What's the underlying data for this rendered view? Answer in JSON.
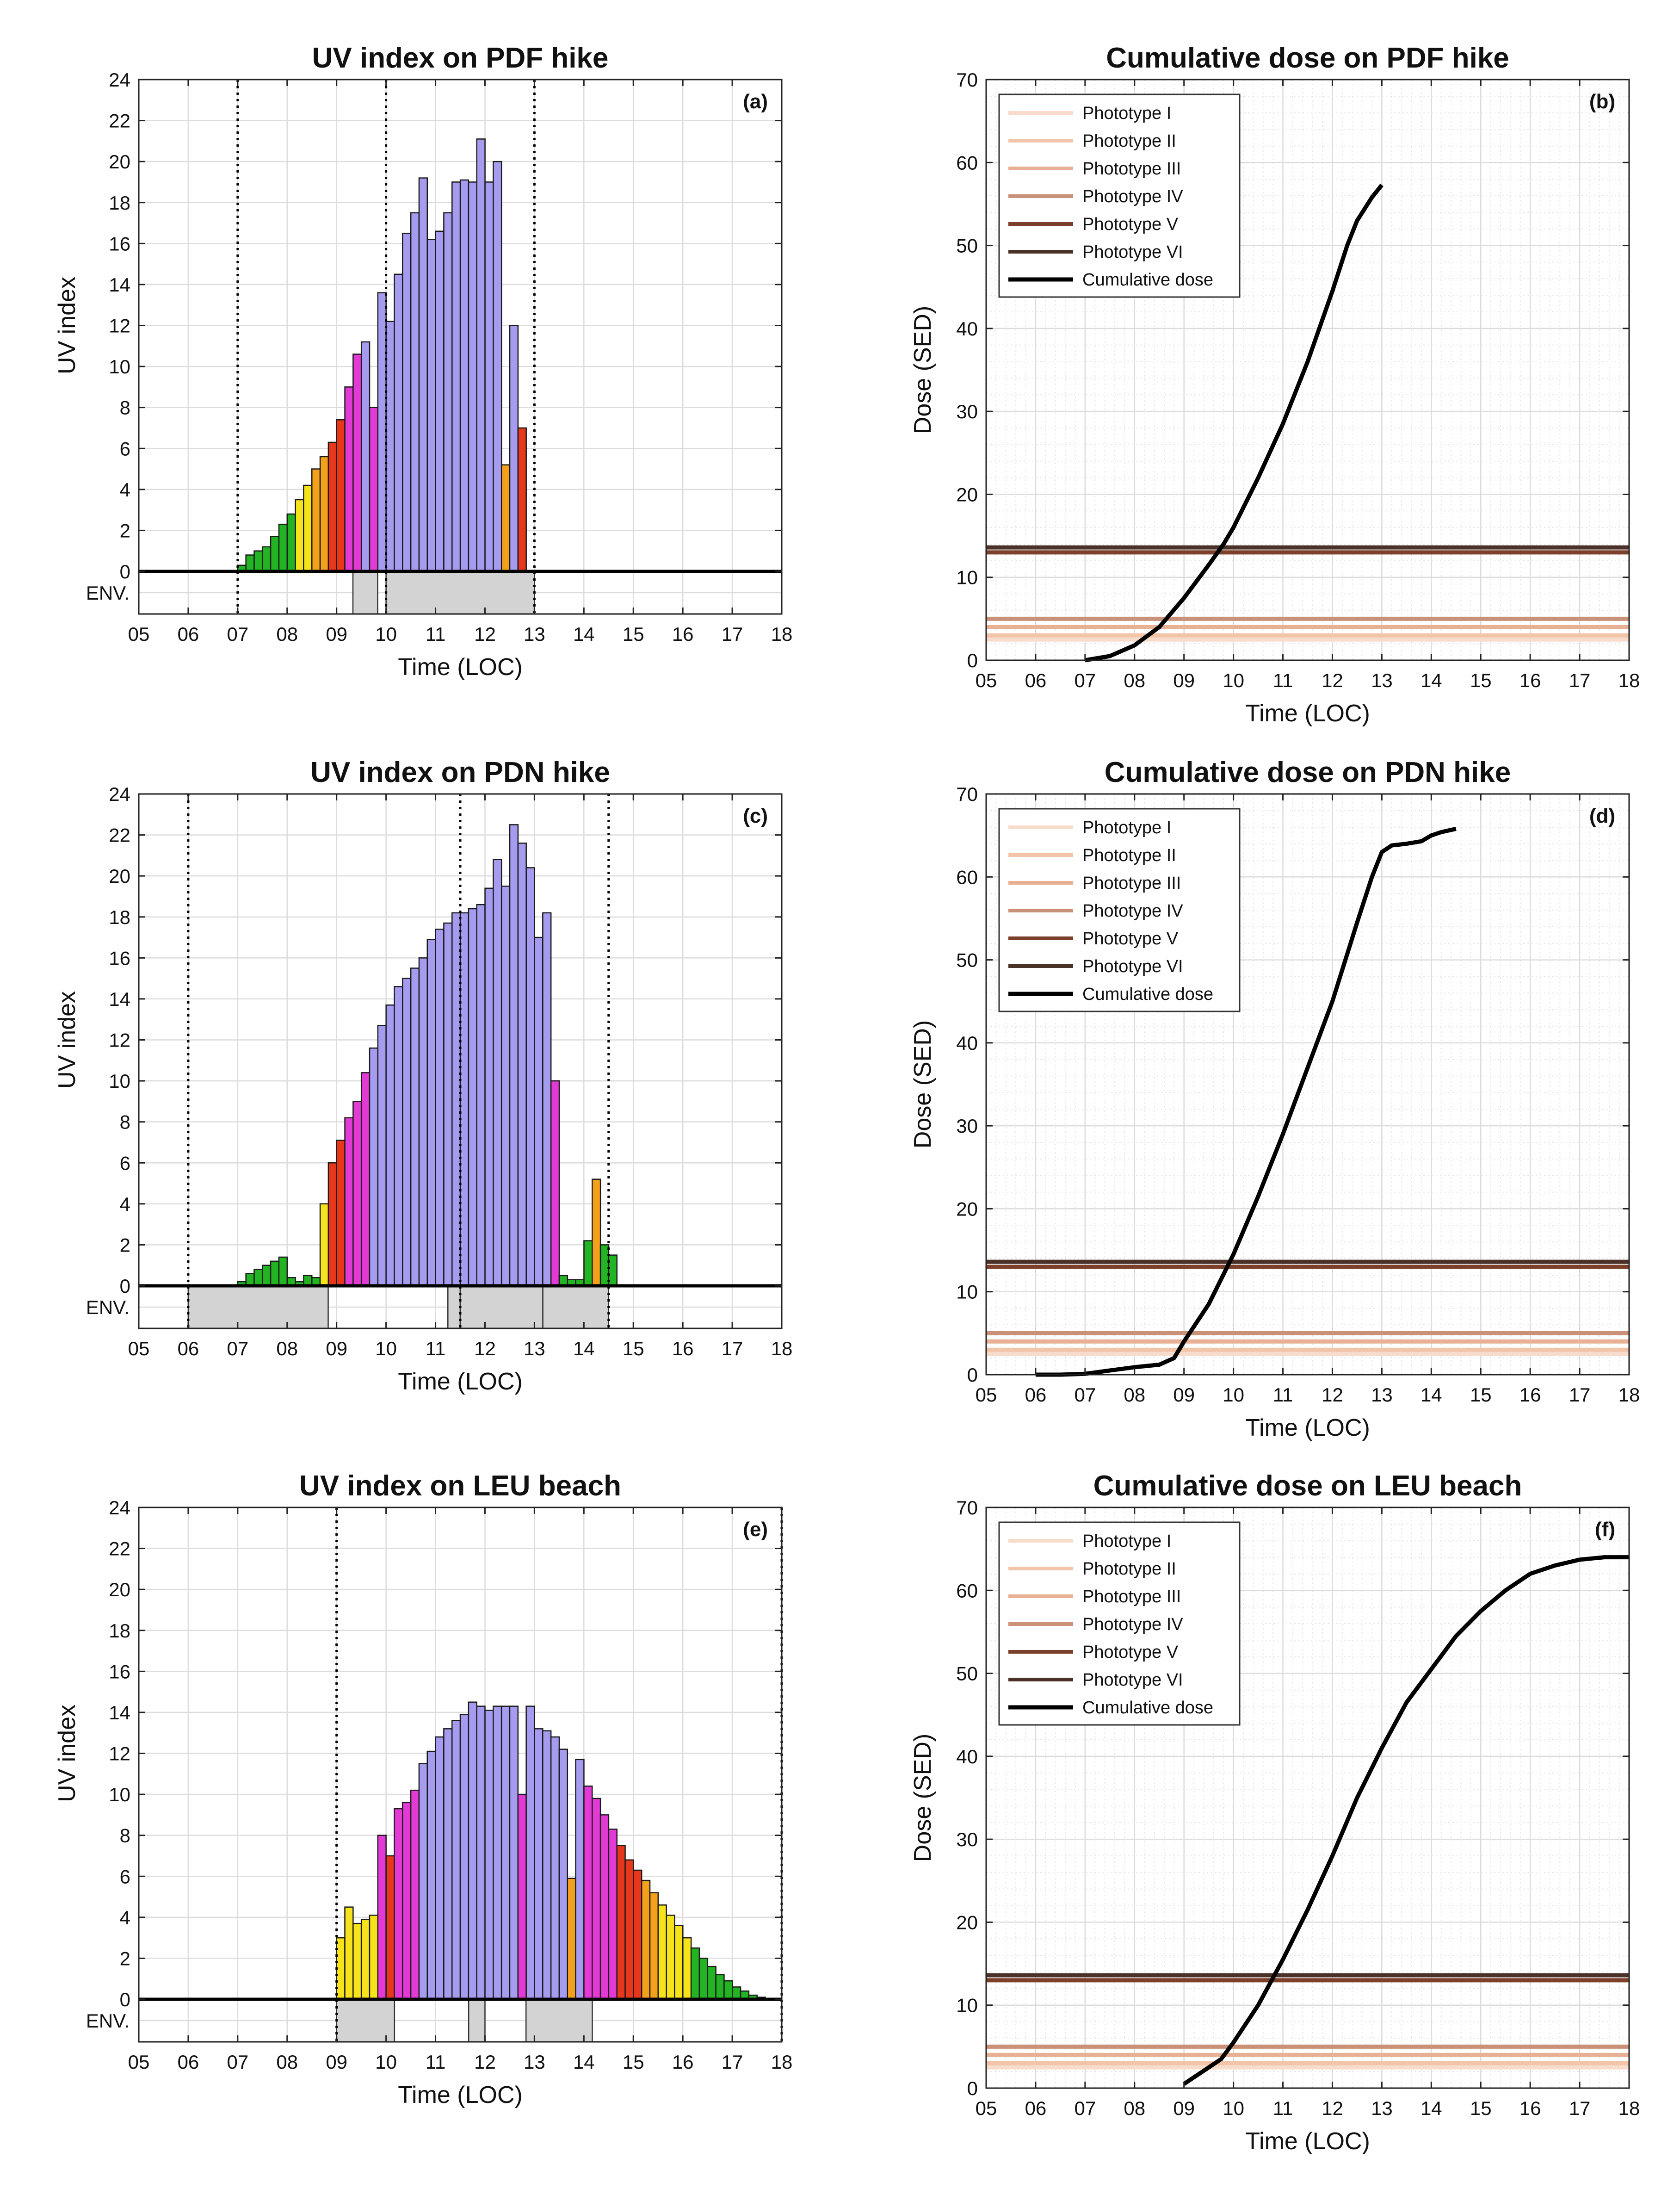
{
  "colors": {
    "uv_green": "#22b422",
    "uv_yellow": "#f7e31c",
    "uv_orange": "#f3a11b",
    "uv_red": "#e8381c",
    "uv_magenta": "#e33ad6",
    "uv_violet": "#a59cf0",
    "env_fill": "#d3d3d3",
    "grid": "#dcdcdc",
    "minor_grid": "#e6e6e6",
    "phototype_I": "#f8dccb",
    "phototype_II": "#f2c4a8",
    "phototype_III": "#e8b094",
    "phototype_IV": "#c99278",
    "phototype_V": "#7b3f2a",
    "phototype_VI": "#4a3228",
    "cumulative": "#000000"
  },
  "chart_data": [
    {
      "panel": "a",
      "type": "bar",
      "title": "UV index on PDF hike",
      "xlabel": "Time (LOC)",
      "ylabel": "UV index",
      "env_label": "ENV.",
      "tag": "(a)",
      "xlim": [
        5,
        18
      ],
      "ylim": [
        0,
        24
      ],
      "yticks": [
        0,
        2,
        4,
        6,
        8,
        10,
        12,
        14,
        16,
        18,
        20,
        22,
        24
      ],
      "xtick_labels": [
        "05",
        "06",
        "07",
        "08",
        "09",
        "10",
        "11",
        "12",
        "13",
        "14",
        "15",
        "16",
        "17",
        "18"
      ],
      "bar_width": 0.1667,
      "bar_start": 7.0,
      "values": [
        0.3,
        0.8,
        1.0,
        1.2,
        1.7,
        2.3,
        2.8,
        3.5,
        4.2,
        5.0,
        5.6,
        6.3,
        7.4,
        9.0,
        10.6,
        11.2,
        8.0,
        13.6,
        12.2,
        14.5,
        16.5,
        17.5,
        19.2,
        16.2,
        16.6,
        17.5,
        19.0,
        19.1,
        19.0,
        21.1,
        19.0,
        20.0,
        5.2,
        12.0,
        7.0
      ],
      "vlines": [
        7.0,
        10.0,
        13.0
      ],
      "env_blocks": [
        [
          9.33,
          9.83
        ],
        [
          10.0,
          13.0
        ]
      ]
    },
    {
      "panel": "b",
      "type": "line",
      "title": "Cumulative dose on PDF hike",
      "xlabel": "Time (LOC)",
      "ylabel": "Dose (SED)",
      "tag": "(b)",
      "xlim": [
        5,
        18
      ],
      "ylim": [
        0,
        70
      ],
      "yticks": [
        0,
        10,
        20,
        30,
        40,
        50,
        60,
        70
      ],
      "xtick_labels": [
        "05",
        "06",
        "07",
        "08",
        "09",
        "10",
        "11",
        "12",
        "13",
        "14",
        "15",
        "16",
        "17",
        "18"
      ],
      "legend": [
        "Phototype I",
        "Phototype II",
        "Phototype III",
        "Phototype IV",
        "Phototype V",
        "Phototype VI",
        "Cumulative dose"
      ],
      "thresholds": [
        2.5,
        3.0,
        4.0,
        5.0,
        13.0,
        13.6
      ],
      "x": [
        7.0,
        7.5,
        8.0,
        8.5,
        9.0,
        9.5,
        9.8,
        10.0,
        10.5,
        11.0,
        11.5,
        12.0,
        12.3,
        12.5,
        12.8,
        13.0
      ],
      "y": [
        0.0,
        0.5,
        1.8,
        4.0,
        7.5,
        11.5,
        14.0,
        16.0,
        22.0,
        28.5,
        36.0,
        44.5,
        50.0,
        53.0,
        55.8,
        57.3
      ]
    },
    {
      "panel": "c",
      "type": "bar",
      "title": "UV index on PDN hike",
      "xlabel": "Time (LOC)",
      "ylabel": "UV index",
      "env_label": "ENV.",
      "tag": "(c)",
      "xlim": [
        5,
        18
      ],
      "ylim": [
        0,
        24
      ],
      "yticks": [
        0,
        2,
        4,
        6,
        8,
        10,
        12,
        14,
        16,
        18,
        20,
        22,
        24
      ],
      "xtick_labels": [
        "05",
        "06",
        "07",
        "08",
        "09",
        "10",
        "11",
        "12",
        "13",
        "14",
        "15",
        "16",
        "17",
        "18"
      ],
      "bar_width": 0.1667,
      "bar_start": 7.0,
      "values": [
        0.2,
        0.6,
        0.8,
        1.0,
        1.2,
        1.4,
        0.4,
        0.2,
        0.5,
        0.4,
        4.0,
        6.0,
        7.1,
        8.2,
        9.0,
        10.4,
        11.6,
        12.7,
        13.7,
        14.6,
        15.0,
        15.5,
        16.0,
        16.9,
        17.4,
        17.7,
        18.2,
        18.2,
        18.4,
        18.6,
        19.4,
        20.8,
        19.5,
        22.5,
        21.6,
        20.4,
        17.0,
        18.2,
        10.0,
        0.5,
        0.3,
        0.3,
        2.2,
        5.2,
        2.0,
        1.5
      ],
      "vlines": [
        6.0,
        11.5,
        14.5
      ],
      "env_blocks": [
        [
          6.0,
          8.83
        ],
        [
          11.25,
          11.5
        ],
        [
          11.5,
          13.17
        ],
        [
          13.17,
          14.5
        ]
      ]
    },
    {
      "panel": "d",
      "type": "line",
      "title": "Cumulative dose on PDN hike",
      "xlabel": "Time (LOC)",
      "ylabel": "Dose (SED)",
      "tag": "(d)",
      "xlim": [
        5,
        18
      ],
      "ylim": [
        0,
        70
      ],
      "yticks": [
        0,
        10,
        20,
        30,
        40,
        50,
        60,
        70
      ],
      "xtick_labels": [
        "05",
        "06",
        "07",
        "08",
        "09",
        "10",
        "11",
        "12",
        "13",
        "14",
        "15",
        "16",
        "17",
        "18"
      ],
      "legend": [
        "Phototype I",
        "Phototype II",
        "Phototype III",
        "Phototype IV",
        "Phototype V",
        "Phototype VI",
        "Cumulative dose"
      ],
      "thresholds": [
        2.5,
        3.0,
        4.0,
        5.0,
        13.0,
        13.6
      ],
      "x": [
        6.0,
        6.5,
        7.0,
        7.5,
        8.0,
        8.5,
        8.8,
        9.0,
        9.5,
        10.0,
        10.5,
        11.0,
        11.5,
        12.0,
        12.5,
        12.8,
        13.0,
        13.2,
        13.5,
        13.8,
        14.0,
        14.2,
        14.5
      ],
      "y": [
        0.0,
        0.0,
        0.1,
        0.5,
        0.9,
        1.2,
        2.0,
        4.0,
        8.5,
        14.5,
        21.5,
        29.0,
        37.0,
        45.0,
        54.5,
        60.0,
        63.0,
        63.8,
        64.0,
        64.3,
        65.0,
        65.4,
        65.8
      ]
    },
    {
      "panel": "e",
      "type": "bar",
      "title": "UV index on LEU beach",
      "xlabel": "Time (LOC)",
      "ylabel": "UV index",
      "env_label": "ENV.",
      "tag": "(e)",
      "xlim": [
        5,
        18
      ],
      "ylim": [
        0,
        24
      ],
      "yticks": [
        0,
        2,
        4,
        6,
        8,
        10,
        12,
        14,
        16,
        18,
        20,
        22,
        24
      ],
      "xtick_labels": [
        "05",
        "06",
        "07",
        "08",
        "09",
        "10",
        "11",
        "12",
        "13",
        "14",
        "15",
        "16",
        "17",
        "18"
      ],
      "bar_width": 0.1667,
      "bar_start": 9.0,
      "values": [
        3.0,
        4.5,
        3.7,
        3.9,
        4.1,
        8.0,
        7.0,
        9.3,
        9.6,
        10.2,
        11.5,
        12.1,
        12.8,
        13.2,
        13.6,
        13.9,
        14.5,
        14.3,
        14.1,
        14.3,
        14.3,
        14.3,
        10.0,
        14.3,
        13.2,
        13.1,
        12.8,
        12.2,
        5.9,
        11.7,
        10.4,
        9.8,
        9.0,
        8.3,
        7.5,
        6.8,
        6.3,
        5.8,
        5.2,
        4.6,
        4.1,
        3.6,
        3.0,
        2.5,
        2.0,
        1.6,
        1.2,
        0.9,
        0.6,
        0.4,
        0.2,
        0.1
      ],
      "vlines": [
        9.0,
        18.0
      ],
      "env_blocks": [
        [
          9.0,
          10.17
        ],
        [
          11.67,
          12.0
        ],
        [
          12.83,
          14.17
        ]
      ]
    },
    {
      "panel": "f",
      "type": "line",
      "title": "Cumulative dose on LEU beach",
      "xlabel": "Time (LOC)",
      "ylabel": "Dose (SED)",
      "tag": "(f)",
      "xlim": [
        5,
        18
      ],
      "ylim": [
        0,
        70
      ],
      "yticks": [
        0,
        10,
        20,
        30,
        40,
        50,
        60,
        70
      ],
      "xtick_labels": [
        "05",
        "06",
        "07",
        "08",
        "09",
        "10",
        "11",
        "12",
        "13",
        "14",
        "15",
        "16",
        "17",
        "18"
      ],
      "legend": [
        "Phototype I",
        "Phototype II",
        "Phototype III",
        "Phototype IV",
        "Phototype V",
        "Phototype VI",
        "Cumulative dose"
      ],
      "thresholds": [
        2.5,
        3.0,
        4.0,
        5.0,
        13.0,
        13.6
      ],
      "x": [
        9.0,
        9.25,
        9.5,
        9.75,
        10.0,
        10.5,
        11.0,
        11.5,
        12.0,
        12.5,
        13.0,
        13.5,
        14.0,
        14.5,
        15.0,
        15.5,
        16.0,
        16.5,
        17.0,
        17.5,
        18.0
      ],
      "y": [
        0.5,
        1.5,
        2.5,
        3.5,
        5.5,
        10.0,
        15.5,
        21.5,
        28.0,
        35.0,
        41.0,
        46.5,
        50.5,
        54.5,
        57.5,
        60.0,
        62.0,
        63.0,
        63.7,
        64.0,
        64.0
      ]
    }
  ]
}
